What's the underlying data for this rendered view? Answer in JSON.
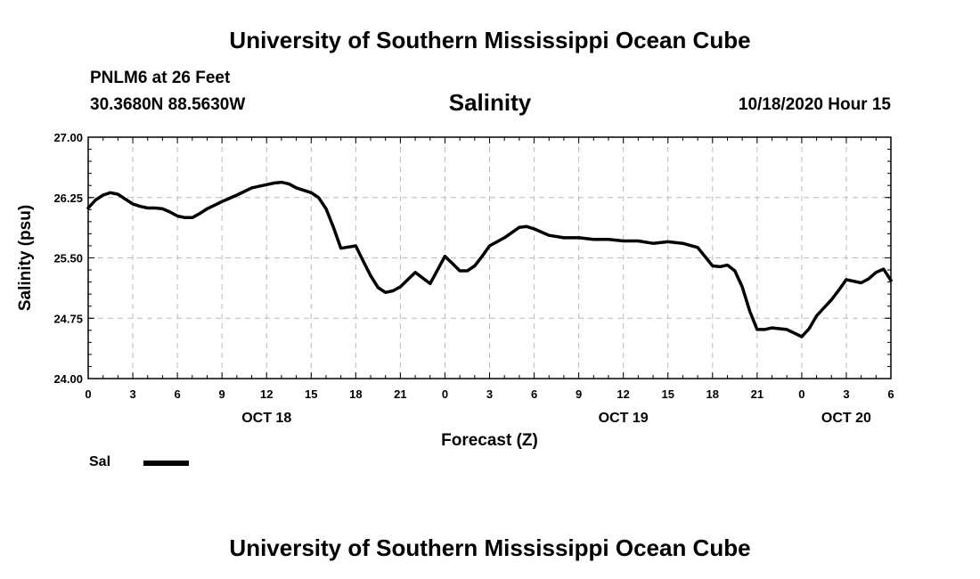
{
  "header": {
    "title": "University of Southern Mississippi Ocean Cube",
    "station": "PNLM6 at 26 Feet",
    "coordinates": "30.3680N 88.5630W",
    "variable_title": "Salinity",
    "datetime": "10/18/2020 Hour 15"
  },
  "footer": {
    "title": "University of Southern Mississippi Ocean Cube"
  },
  "legend": {
    "label": "Sal"
  },
  "colors": {
    "line": "#000000",
    "grid": "#bbbbbb",
    "background": "#ffffff"
  },
  "chart_data": {
    "type": "line",
    "title": "Salinity",
    "xlabel": "Forecast (Z)",
    "ylabel": "Salinity (psu)",
    "xlim": [
      0,
      54
    ],
    "ylim": [
      24.0,
      27.0
    ],
    "x_ticks": [
      0,
      3,
      6,
      9,
      12,
      15,
      18,
      21,
      24,
      27,
      30,
      33,
      36,
      39,
      42,
      45,
      48,
      51,
      54
    ],
    "x_tick_labels": [
      "0",
      "3",
      "6",
      "9",
      "12",
      "15",
      "18",
      "21",
      "0",
      "3",
      "6",
      "9",
      "12",
      "15",
      "18",
      "21",
      "0",
      "3",
      "6"
    ],
    "y_ticks": [
      24.0,
      24.75,
      25.5,
      26.25,
      27.0
    ],
    "y_tick_labels": [
      "24.00",
      "24.75",
      "25.50",
      "26.25",
      "27.00"
    ],
    "date_labels": [
      {
        "x": 12,
        "label": "OCT 18"
      },
      {
        "x": 36,
        "label": "OCT 19"
      },
      {
        "x": 51,
        "label": "OCT 20"
      }
    ],
    "grid": true,
    "series": [
      {
        "name": "Sal",
        "x": [
          0,
          0.5,
          1,
          1.5,
          2,
          2.5,
          3,
          3.5,
          4,
          4.5,
          5,
          5.5,
          6,
          6.5,
          7,
          7.5,
          8,
          9,
          10,
          11,
          12,
          12.5,
          13,
          13.5,
          14,
          15,
          15.5,
          16,
          16.5,
          17,
          18,
          18.5,
          19,
          19.5,
          20,
          20.5,
          21,
          22,
          23,
          24,
          24.5,
          25,
          25.5,
          26,
          26.5,
          27,
          28,
          29,
          29.5,
          30,
          31,
          32,
          33,
          34,
          35,
          36,
          37,
          38,
          39,
          40,
          41,
          42,
          42.5,
          43,
          43.5,
          44,
          44.5,
          45,
          45.5,
          46,
          46.5,
          47,
          48,
          48.5,
          49,
          49.5,
          50,
          50.5,
          51,
          52,
          52.5,
          53,
          53.5,
          54
        ],
        "values": [
          26.12,
          26.22,
          26.28,
          26.31,
          26.29,
          26.23,
          26.17,
          26.14,
          26.12,
          26.12,
          26.11,
          26.07,
          26.02,
          26.0,
          26.0,
          26.05,
          26.11,
          26.2,
          26.28,
          26.37,
          26.41,
          26.43,
          26.44,
          26.42,
          26.37,
          26.31,
          26.25,
          26.11,
          25.88,
          25.62,
          25.65,
          25.46,
          25.28,
          25.13,
          25.07,
          25.09,
          25.14,
          25.32,
          25.18,
          25.52,
          25.43,
          25.34,
          25.34,
          25.4,
          25.52,
          25.65,
          25.75,
          25.88,
          25.89,
          25.86,
          25.78,
          25.75,
          25.75,
          25.73,
          25.73,
          25.71,
          25.71,
          25.68,
          25.7,
          25.68,
          25.63,
          25.4,
          25.39,
          25.41,
          25.34,
          25.14,
          24.84,
          24.61,
          24.61,
          24.63,
          24.62,
          24.61,
          24.52,
          24.62,
          24.78,
          24.88,
          24.98,
          25.1,
          25.23,
          25.19,
          25.24,
          25.32,
          25.36,
          25.22
        ]
      }
    ]
  }
}
